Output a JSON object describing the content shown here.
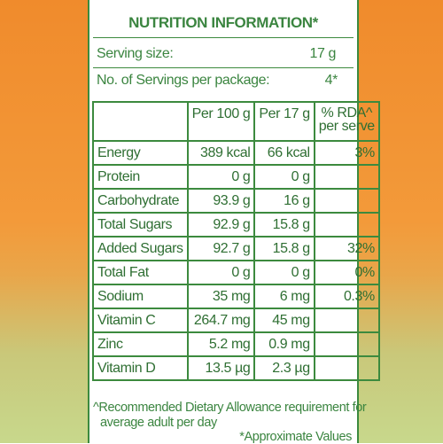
{
  "title": "NUTRITION INFORMATION*",
  "serving": [
    {
      "label": "Serving size:",
      "value": "17 g"
    },
    {
      "label": "No. of Servings per package:",
      "value": "4*"
    }
  ],
  "table": {
    "columns": [
      "Per 100 g",
      "Per 17 g"
    ],
    "rda_header": [
      "% RDA^",
      "per serve"
    ],
    "rows": [
      [
        "Energy",
        "389 kcal",
        "66 kcal",
        "3%"
      ],
      [
        "Protein",
        "0 g",
        "0 g"
      ],
      [
        "Carbohydrate",
        "93.9 g",
        "16 g"
      ],
      [
        "Total Sugars",
        "92.9 g",
        "15.8 g"
      ],
      [
        "Added Sugars",
        "92.7 g",
        "15.8 g",
        "32%"
      ],
      [
        "Total Fat",
        "0 g",
        "0 g",
        "0%"
      ],
      [
        "Sodium",
        "35 mg",
        "6 mg",
        "0.3%"
      ],
      [
        "Vitamin C",
        "264.7 mg",
        "45 mg"
      ],
      [
        "Zinc",
        "5.2 mg",
        "0.9 mg"
      ],
      [
        "Vitamin D",
        "13.5 µg",
        "2.3 µg"
      ]
    ]
  },
  "footnote": [
    "^Recommended Dietary Allowance requirement for",
    "average adult per day"
  ],
  "approx": "*Approximate Values"
}
